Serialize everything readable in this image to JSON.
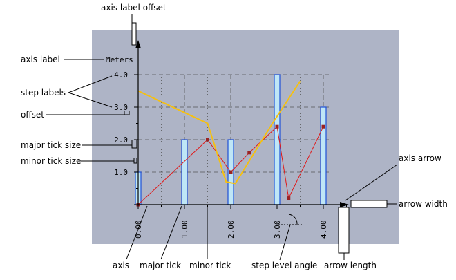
{
  "annotations": {
    "axis_label_offset": "axis label offset",
    "axis_label": "axis label",
    "step_labels": "step labels",
    "offset": "offset",
    "major_tick_size": "major tick size",
    "minor_tick_size": "minor tick size",
    "axis_arrow": "axis arrow",
    "arrow_width": "arrow width",
    "axis": "axis",
    "major_tick": "major tick",
    "minor_tick": "minor tick",
    "step_level_angle": "step level angle",
    "arrow_length": "arrow length"
  },
  "colors": {
    "plot_background": "#aeb4c6",
    "bar_fill": "#bfe6f6",
    "bar_stroke": "#1e4fd6",
    "line_red": "#e01818",
    "marker_red": "#9a2222",
    "line_yellow": "#f5c010",
    "grid": "#555555"
  },
  "chart_data": {
    "type": "bar",
    "ylabel": "Meters",
    "x_ticks": [
      "0.00",
      "1.00",
      "2.00",
      "3.00",
      "4.00"
    ],
    "y_ticks": [
      "1.0",
      "2.0",
      "3.0",
      "4.0"
    ],
    "xlim": [
      0,
      4.5
    ],
    "ylim": [
      0,
      4.0
    ],
    "grid": true,
    "bars": {
      "x": [
        0,
        1,
        2,
        3,
        4
      ],
      "values": [
        1.0,
        2.0,
        2.0,
        4.0,
        3.0
      ]
    },
    "series": [
      {
        "kind": "line-markers",
        "color": "red",
        "x": [
          0,
          1.5,
          2.0,
          2.4,
          3.0,
          3.25,
          4.0
        ],
        "y": [
          0,
          2.0,
          1.0,
          1.6,
          2.4,
          0.2,
          2.4
        ]
      },
      {
        "kind": "line",
        "color": "yellow",
        "x": [
          0,
          1.5,
          1.9,
          2.1,
          2.9,
          3.5
        ],
        "y": [
          3.5,
          2.5,
          0.7,
          0.65,
          2.5,
          3.8
        ]
      }
    ]
  }
}
